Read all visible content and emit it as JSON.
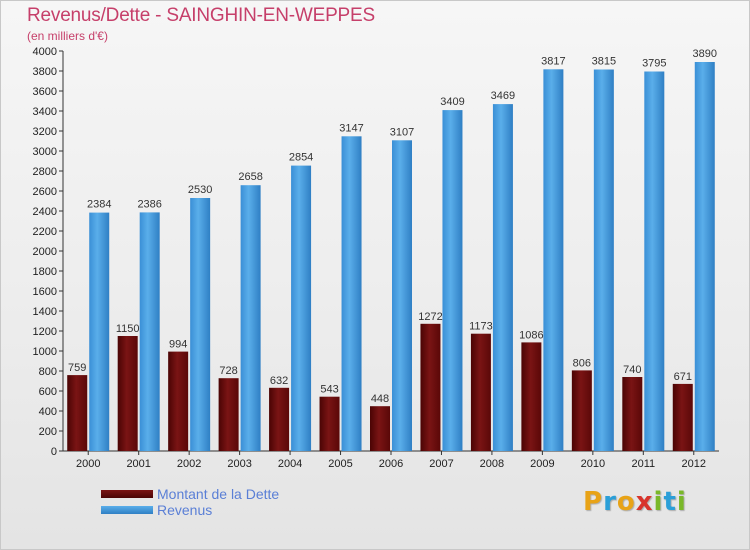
{
  "header": {
    "title": "Revenus/Dette - SAINGHIN-EN-WEPPES",
    "subtitle": "(en milliers d'€)"
  },
  "colors": {
    "debt": "#6b0a0a",
    "revenue": "#4a9fe0",
    "title": "#c63f6a",
    "legend_text": "#5a7fd6"
  },
  "chart_data": {
    "type": "bar",
    "categories": [
      "2000",
      "2001",
      "2002",
      "2003",
      "2004",
      "2005",
      "2006",
      "2007",
      "2008",
      "2009",
      "2010",
      "2011",
      "2012"
    ],
    "series": [
      {
        "name": "Montant de la Dette",
        "values": [
          759,
          1150,
          994,
          728,
          632,
          543,
          448,
          1272,
          1173,
          1086,
          806,
          740,
          671
        ]
      },
      {
        "name": "Revenus",
        "values": [
          2384,
          2386,
          2530,
          2658,
          2854,
          3147,
          3107,
          3409,
          3469,
          3817,
          3815,
          3795,
          3890
        ]
      }
    ],
    "yticks": [
      "0",
      "200",
      "400",
      "600",
      "800",
      "1000",
      "1200",
      "1400",
      "1600",
      "1800",
      "2000",
      "2200",
      "2400",
      "2600",
      "2800",
      "3000",
      "3200",
      "3400",
      "3600",
      "3800",
      "4000"
    ],
    "ylim": [
      0,
      4000
    ],
    "grid": false,
    "legend_position": "bottom-left"
  },
  "legend": {
    "items": [
      {
        "label": "Montant de la Dette"
      },
      {
        "label": "Revenus"
      }
    ]
  },
  "logo": {
    "letters": [
      "P",
      "r",
      "o",
      "x",
      "i",
      "t",
      "i"
    ],
    "colors": [
      "#e8a317",
      "#2b9fd8",
      "#e8a317",
      "#d8342c",
      "#7ab829",
      "#2b9fd8",
      "#7ab829"
    ]
  }
}
